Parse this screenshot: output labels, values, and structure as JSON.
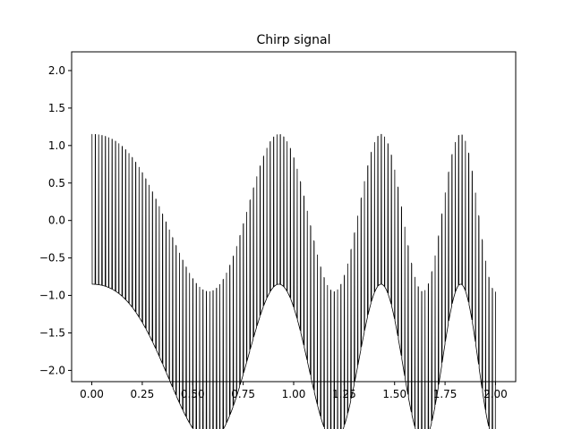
{
  "chart_data": {
    "type": "line",
    "title": "Chirp signal",
    "xlabel": "",
    "ylabel": "",
    "xlim": [
      -0.1,
      2.1
    ],
    "ylim": [
      -2.15,
      2.25
    ],
    "x_ticks": [
      0.0,
      0.25,
      0.5,
      0.75,
      1.0,
      1.25,
      1.5,
      1.75,
      2.0
    ],
    "x_tick_labels": [
      "0.00",
      "0.25",
      "0.50",
      "0.75",
      "1.00",
      "1.25",
      "1.50",
      "1.75",
      "2.00"
    ],
    "y_ticks": [
      -2.0,
      -1.5,
      -1.0,
      -0.5,
      0.0,
      0.5,
      1.0,
      1.5,
      2.0
    ],
    "y_tick_labels": [
      "−2.0",
      "−1.5",
      "−1.0",
      "−0.5",
      "0.0",
      "0.5",
      "1.0",
      "1.5",
      "2.0"
    ],
    "grid": false,
    "legend": "none",
    "line_color": "#000000",
    "series": [
      {
        "x_start": 0.0,
        "x_end": 2.0,
        "samples": 2000,
        "components": [
          {
            "kind": "square_wave",
            "amplitude": 1.0,
            "frequency_hz": 60,
            "duty": 0.1,
            "offset": -0.9
          },
          {
            "kind": "chirp",
            "amplitude": 1.05,
            "f0_hz": 0.5,
            "f1_hz": 3.0,
            "t1": 2.0
          }
        ]
      }
    ]
  }
}
